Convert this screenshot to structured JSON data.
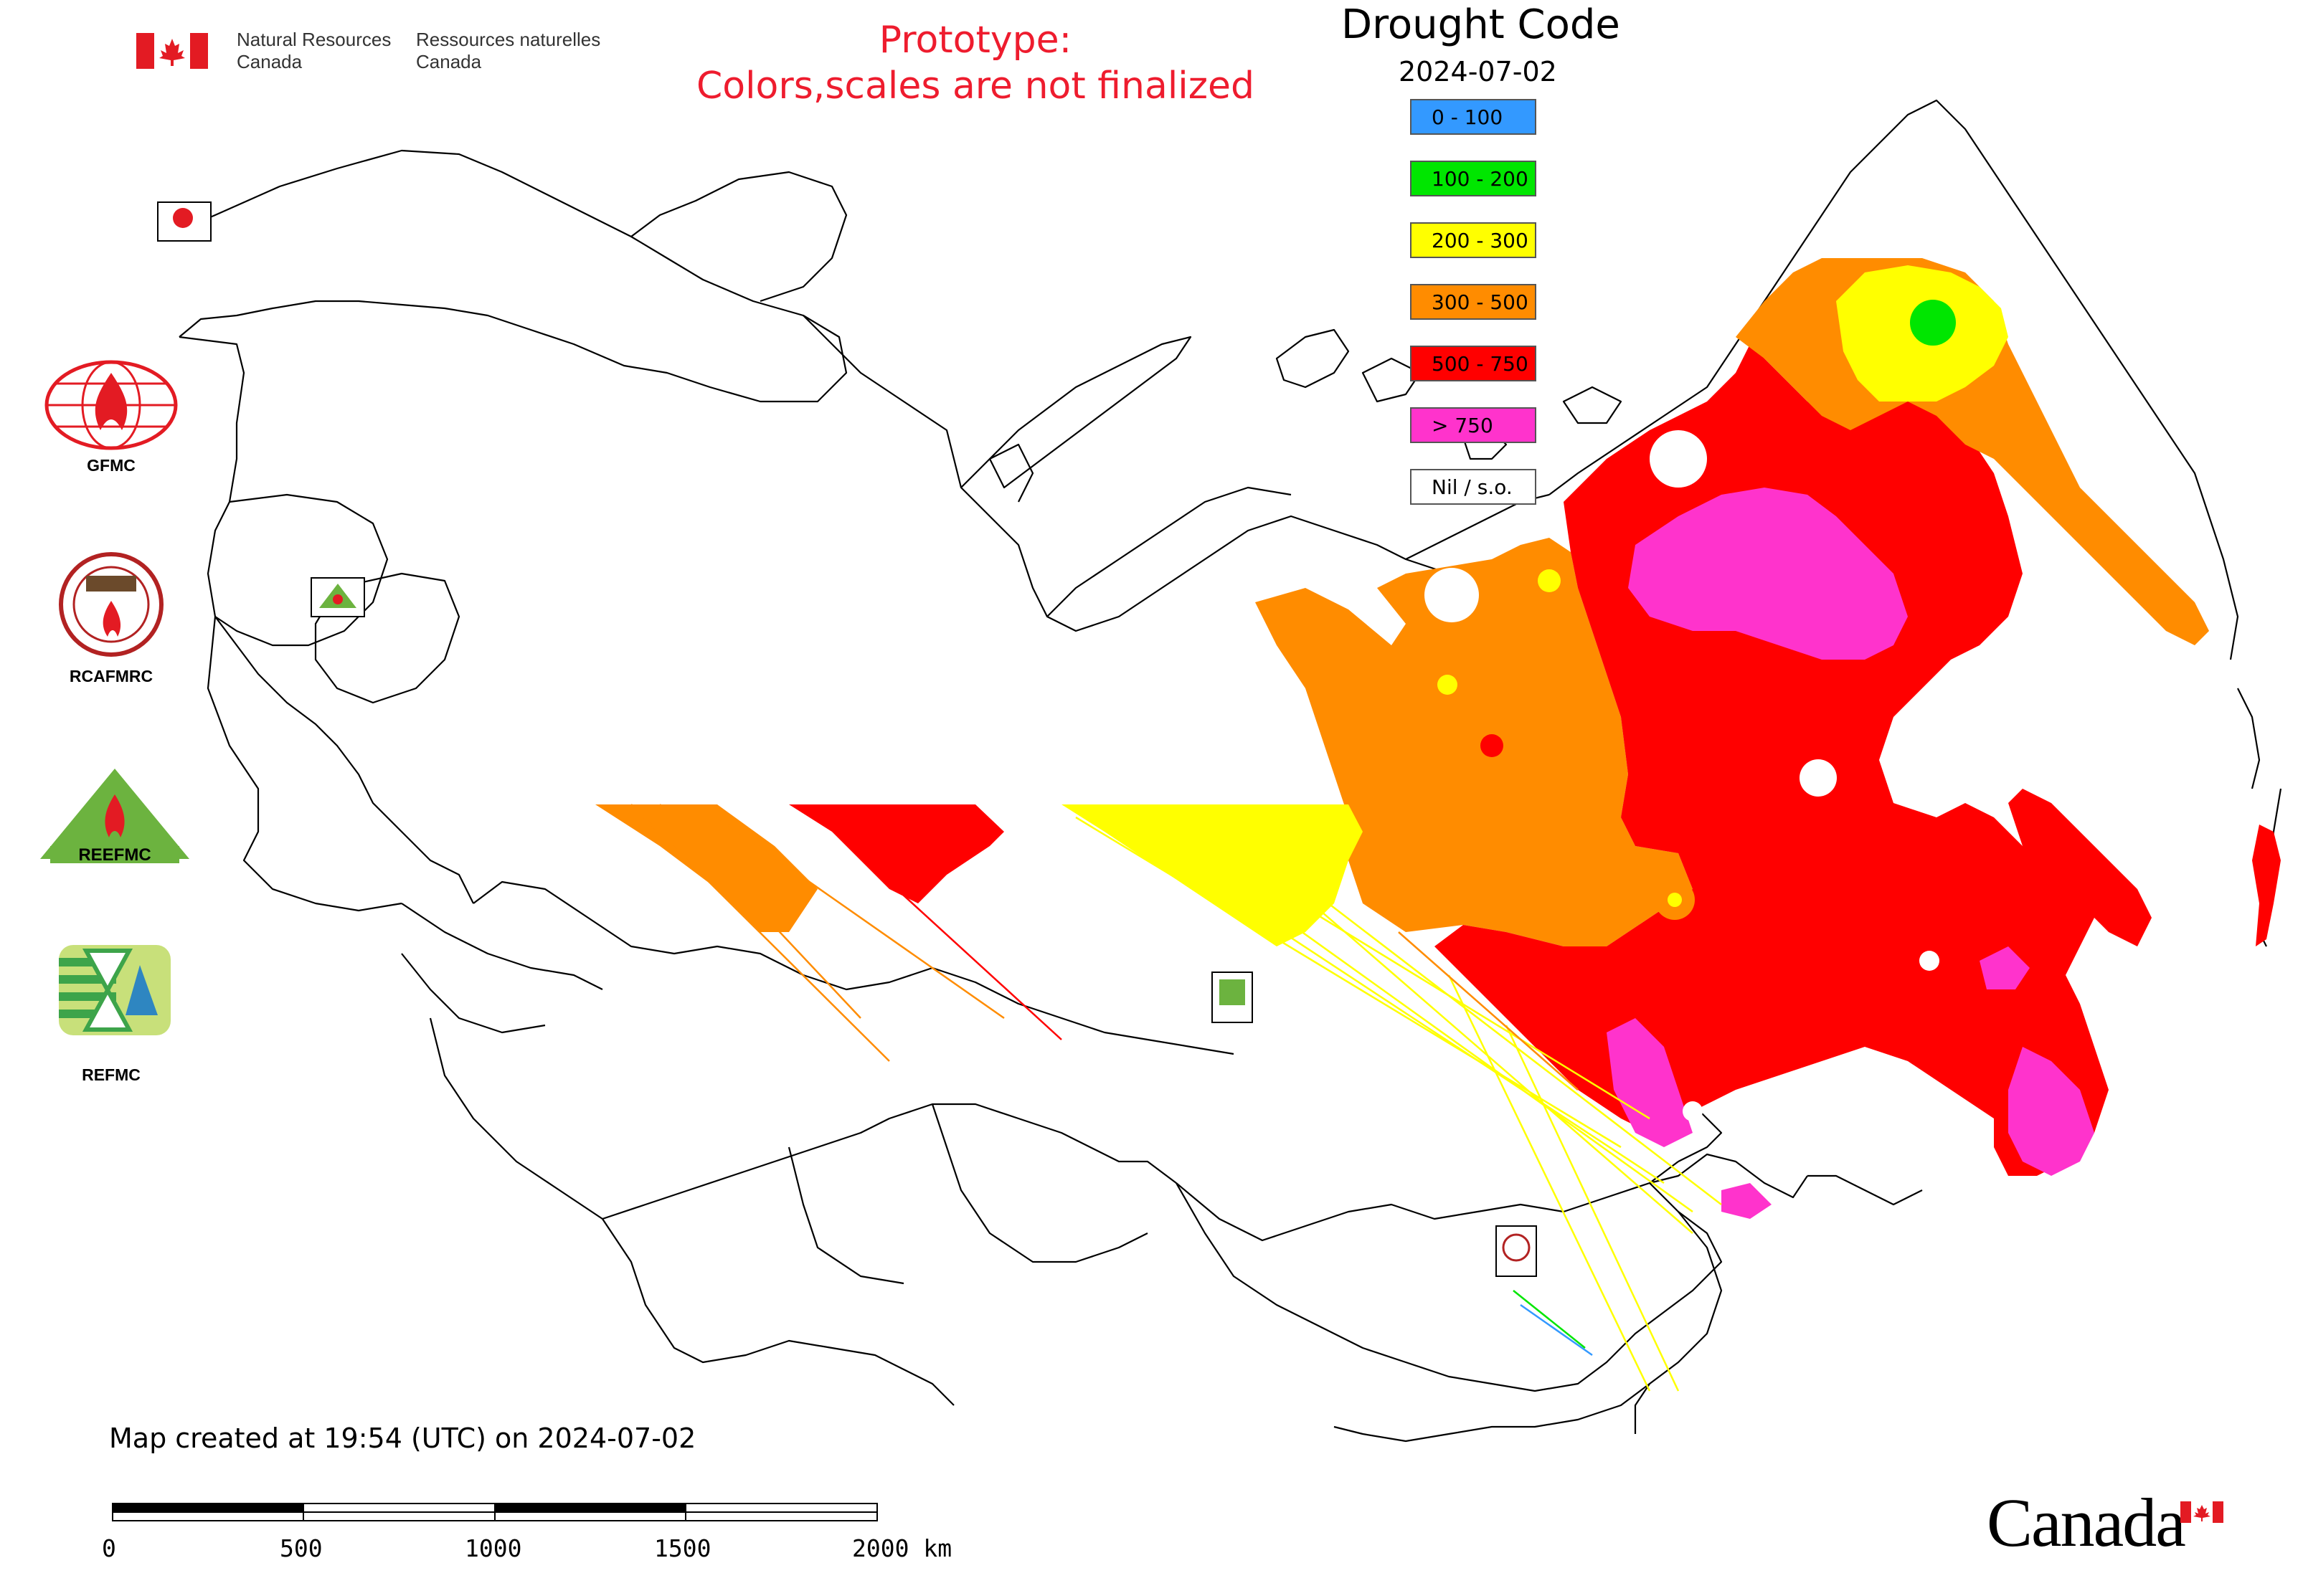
{
  "header": {
    "agency_en_line1": "Natural Resources",
    "agency_en_line2": "Canada",
    "agency_fr_line1": "Ressources naturelles",
    "agency_fr_line2": "Canada",
    "prototype_line1": "Prototype:",
    "prototype_line2": "Colors,scales are not finalized"
  },
  "legend": {
    "title": "Drought Code",
    "date": "2024-07-02",
    "items": [
      {
        "label": "0 - 100",
        "color": "#3399ff"
      },
      {
        "label": "100 - 200",
        "color": "#00e600"
      },
      {
        "label": "200 - 300",
        "color": "#ffff00"
      },
      {
        "label": "300 - 500",
        "color": "#ff8c00"
      },
      {
        "label": "500 - 750",
        "color": "#ff0000"
      },
      {
        "label": "> 750",
        "color": "#ff33cc"
      },
      {
        "label": "Nil / s.o.",
        "color": "#ffffff"
      }
    ]
  },
  "organizations": [
    {
      "label": "GFMC",
      "icon": "gfmc-logo-icon"
    },
    {
      "label": "RCAFMRC",
      "icon": "rcafmrc-logo-icon"
    },
    {
      "label": "REEFMC",
      "icon": "reefmc-logo-icon"
    },
    {
      "label": "REFMC",
      "icon": "refmc-logo-icon"
    }
  ],
  "footer": {
    "created": "Map created at 19:54 (UTC) on 2024-07-02",
    "scale_ticks": [
      "0",
      "500",
      "1000",
      "1500",
      "2000 km"
    ],
    "wordmark": "Canada"
  }
}
